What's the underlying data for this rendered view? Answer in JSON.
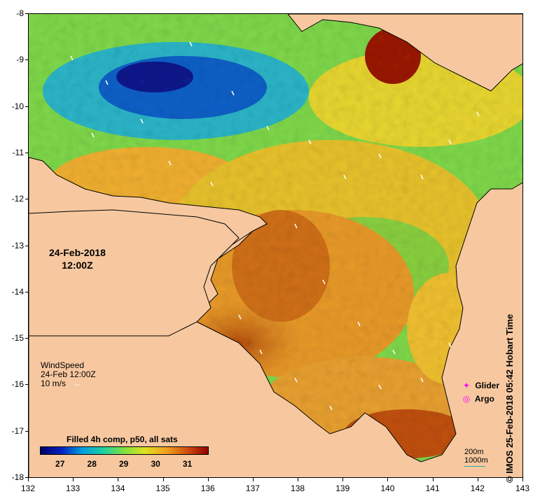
{
  "map": {
    "x_ticks": [
      "132",
      "133",
      "134",
      "135",
      "136",
      "137",
      "138",
      "139",
      "140",
      "141",
      "142",
      "143"
    ],
    "y_ticks": [
      "-8",
      "-9",
      "-10",
      "-11",
      "-12",
      "-13",
      "-14",
      "-15",
      "-16",
      "-17",
      "-18"
    ],
    "land_color": "#f7c8a0",
    "coast_color": "#000000"
  },
  "timestamp": {
    "date": "24-Feb-2018",
    "time": "12:00Z"
  },
  "wind_legend": {
    "title": "WindSpeed",
    "time": "24-Feb 12:00Z",
    "scale": "10 m/s",
    "arrow_icon": "wind-arrow-icon"
  },
  "markers_legend": {
    "glider": {
      "symbol": "✦",
      "label": "Glider",
      "color": "#ff00ff"
    },
    "argo": {
      "symbol": "◎",
      "label": "Argo",
      "color": "#ff00ff"
    }
  },
  "scale_legend": {
    "depth_200": "200m",
    "depth_1000": "1000m"
  },
  "colorbar": {
    "title": "Filled 4h comp, p50, all sats",
    "ticks": [
      "27",
      "28",
      "29",
      "30",
      "31"
    ],
    "colors": [
      "#00006a",
      "#0020c0",
      "#00a0e0",
      "#20d0a0",
      "#80e040",
      "#e0e020",
      "#f0a020",
      "#d05010",
      "#900000"
    ]
  },
  "credit": "© IMOS 25-Feb-2018 05:42 Hobart Time"
}
